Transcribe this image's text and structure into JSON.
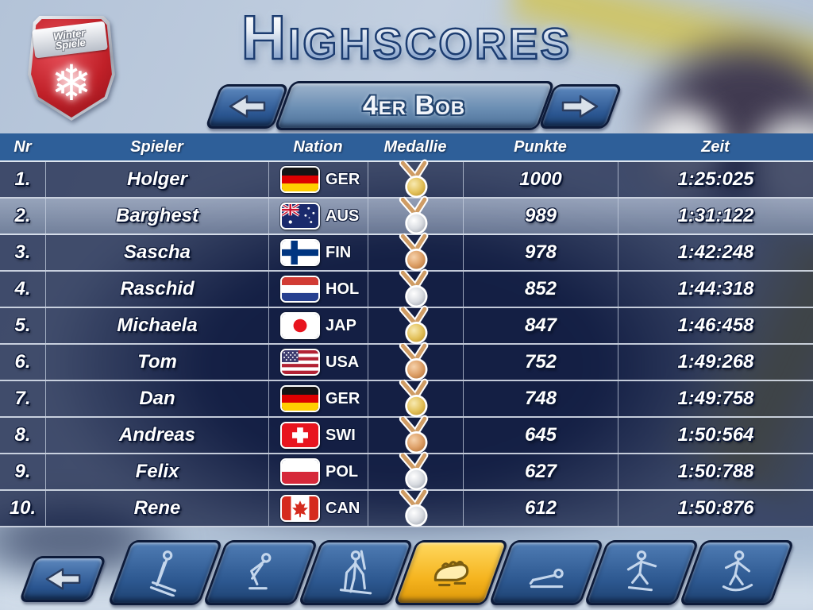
{
  "logo": {
    "text_line1": "Winter",
    "text_line2": "Spiele",
    "snowflake_icon": "❄"
  },
  "title": "Highscores",
  "event_selector": {
    "event_name": "4er Bob"
  },
  "table": {
    "columns": [
      "Nr",
      "Spieler",
      "Nation",
      "Medallie",
      "Punkte",
      "Zeit"
    ],
    "rows": [
      {
        "nr": "1.",
        "spieler": "Holger",
        "nation": "GER",
        "medal": "gold",
        "punkte": "1000",
        "zeit": "1:25:025",
        "highlighted": false
      },
      {
        "nr": "2.",
        "spieler": "Barghest",
        "nation": "AUS",
        "medal": "silver",
        "punkte": "989",
        "zeit": "1:31:122",
        "highlighted": true
      },
      {
        "nr": "3.",
        "spieler": "Sascha",
        "nation": "FIN",
        "medal": "bronze",
        "punkte": "978",
        "zeit": "1:42:248",
        "highlighted": false
      },
      {
        "nr": "4.",
        "spieler": "Raschid",
        "nation": "HOL",
        "medal": "silver",
        "punkte": "852",
        "zeit": "1:44:318",
        "highlighted": false
      },
      {
        "nr": "5.",
        "spieler": "Michaela",
        "nation": "JAP",
        "medal": "gold",
        "punkte": "847",
        "zeit": "1:46:458",
        "highlighted": false
      },
      {
        "nr": "6.",
        "spieler": "Tom",
        "nation": "USA",
        "medal": "bronze",
        "punkte": "752",
        "zeit": "1:49:268",
        "highlighted": false
      },
      {
        "nr": "7.",
        "spieler": "Dan",
        "nation": "GER",
        "medal": "gold",
        "punkte": "748",
        "zeit": "1:49:758",
        "highlighted": false
      },
      {
        "nr": "8.",
        "spieler": "Andreas",
        "nation": "SWI",
        "medal": "bronze",
        "punkte": "645",
        "zeit": "1:50:564",
        "highlighted": false
      },
      {
        "nr": "9.",
        "spieler": "Felix",
        "nation": "POL",
        "medal": "silver",
        "punkte": "627",
        "zeit": "1:50:788",
        "highlighted": false
      },
      {
        "nr": "10.",
        "spieler": "Rene",
        "nation": "CAN",
        "medal": "silver",
        "punkte": "612",
        "zeit": "1:50:876",
        "highlighted": false
      }
    ]
  },
  "bottom_bar": {
    "sports": [
      {
        "name": "ski-jumping",
        "selected": false
      },
      {
        "name": "speed-skating",
        "selected": false
      },
      {
        "name": "biathlon",
        "selected": false
      },
      {
        "name": "bobsled",
        "selected": true
      },
      {
        "name": "luge",
        "selected": false
      },
      {
        "name": "freestyle-skiing",
        "selected": false
      },
      {
        "name": "snowboarding",
        "selected": false
      }
    ]
  },
  "colors": {
    "header_blue": "#2e5f99",
    "button_blue": "#2c578f",
    "selected_yellow": "#f5b41f",
    "row_dark": "#111c40",
    "row_highlight": "#8c9ab8",
    "medal_gold": "#e3c25c",
    "medal_silver": "#d9dce1",
    "medal_bronze": "#dd9f66"
  }
}
